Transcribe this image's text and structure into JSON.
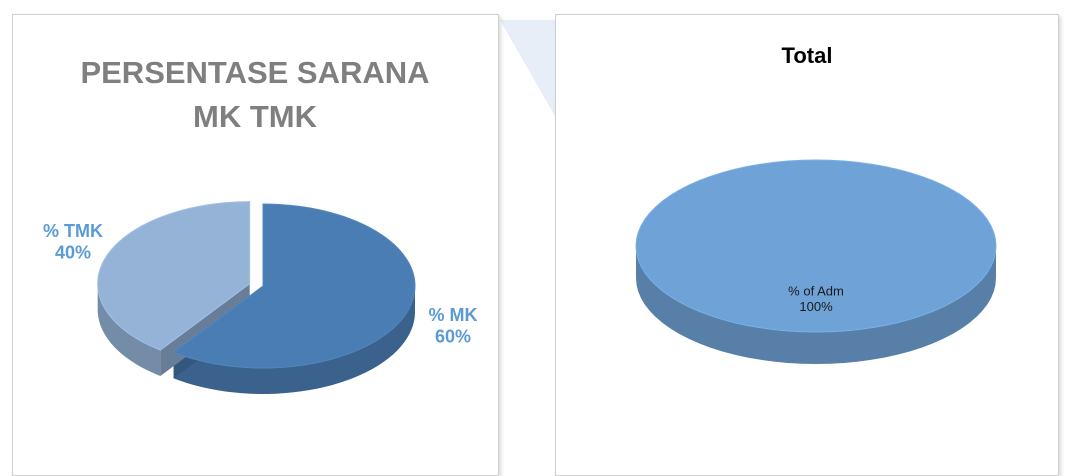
{
  "chart_data": [
    {
      "type": "pie",
      "title": "PERSENTASE SARANA MK TMK",
      "categories": [
        "% MK",
        "% TMK"
      ],
      "values": [
        60,
        40
      ],
      "value_labels": [
        "60%",
        "40%"
      ],
      "colors": [
        "#4a7db3",
        "#95b3d7"
      ]
    },
    {
      "type": "pie",
      "title": "Total",
      "categories": [
        "% of Adm"
      ],
      "values": [
        100
      ],
      "value_labels": [
        "100%"
      ],
      "colors": [
        "#6fa3d8"
      ]
    }
  ]
}
